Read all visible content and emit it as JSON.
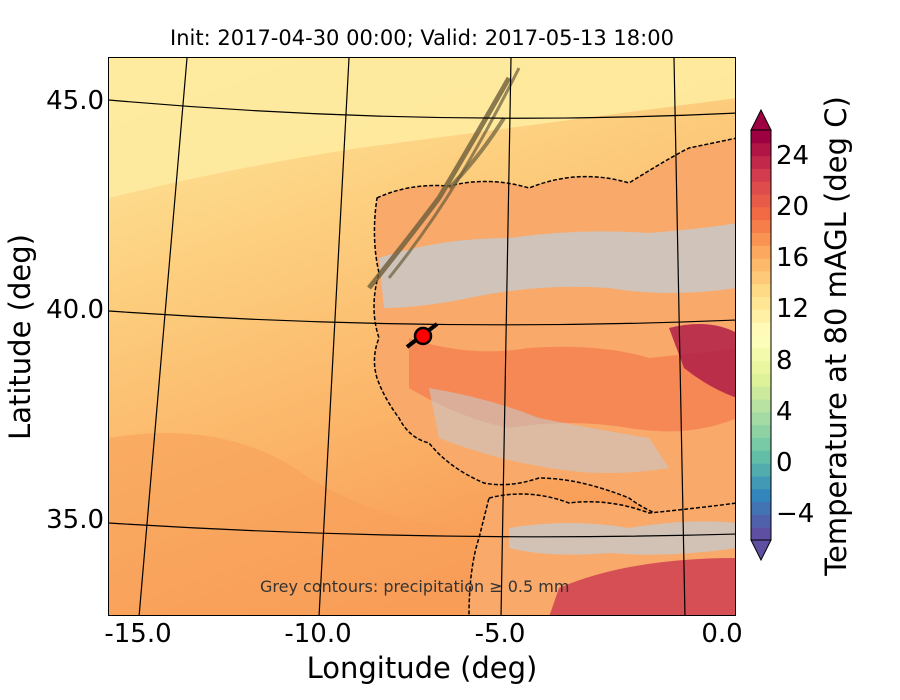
{
  "title": "Init: 2017-04-30 00:00; Valid: 2017-05-13 18:00",
  "xlabel": "Longitude (deg)",
  "ylabel": "Latitude (deg)",
  "note": "Grey contours: precipitation ≥ 0.5 mm",
  "x_ticks": [
    "-15.0",
    "-10.0",
    "-5.0",
    "0.0"
  ],
  "y_ticks": [
    "45.0",
    "40.0",
    "35.0"
  ],
  "colorbar": {
    "label": "Temperature at 80 mAGL (deg C)",
    "ticks": [
      "−4",
      "0",
      "4",
      "8",
      "12",
      "16",
      "20",
      "24"
    ],
    "tick_values": [
      -4,
      0,
      4,
      8,
      12,
      16,
      20,
      24
    ],
    "min": -6,
    "max": 26,
    "colors": [
      "#5e4fa2",
      "#3288bd",
      "#66c2a5",
      "#abdda4",
      "#e6f598",
      "#ffffbf",
      "#fee08b",
      "#fdae61",
      "#f46d43",
      "#d53e4f",
      "#9e0142"
    ]
  },
  "marker": {
    "lon": -7.6,
    "lat": 39.4,
    "color": "#ff0000"
  }
}
